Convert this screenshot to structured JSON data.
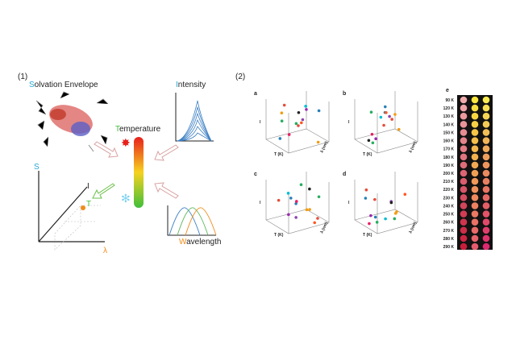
{
  "panel1": {
    "label": "(1)",
    "solvation": {
      "initial": "S",
      "rest": "olvation Envelope"
    },
    "intensity": {
      "initial": "I",
      "rest": "ntensity"
    },
    "temperature": {
      "initial": "T",
      "rest": "emperature"
    },
    "wavelength": {
      "initial": "W",
      "rest": "avelength"
    },
    "axes": {
      "s": "S",
      "i": "I",
      "t": "T",
      "lambda": "λ"
    }
  },
  "panel2": {
    "label": "(2)",
    "subplots": [
      {
        "letter": "a",
        "x_label": "T (K)",
        "y_label": "λ (nm)",
        "z_label": "I"
      },
      {
        "letter": "b",
        "x_label": "T (K)",
        "y_label": "λ (nm)",
        "z_label": "I"
      },
      {
        "letter": "c",
        "x_label": "T (K)",
        "y_label": "λ (nm)",
        "z_label": "I"
      },
      {
        "letter": "d",
        "x_label": "T (K)",
        "y_label": "λ (nm)",
        "z_label": "I"
      }
    ],
    "heatmap": {
      "letter": "e",
      "rows": [
        "90 K",
        "120 K",
        "130 K",
        "140 K",
        "150 K",
        "160 K",
        "170 K",
        "180 K",
        "190 K",
        "200 K",
        "210 K",
        "220 K",
        "230 K",
        "240 K",
        "250 K",
        "260 K",
        "270 K",
        "280 K",
        "290 K"
      ]
    }
  }
}
